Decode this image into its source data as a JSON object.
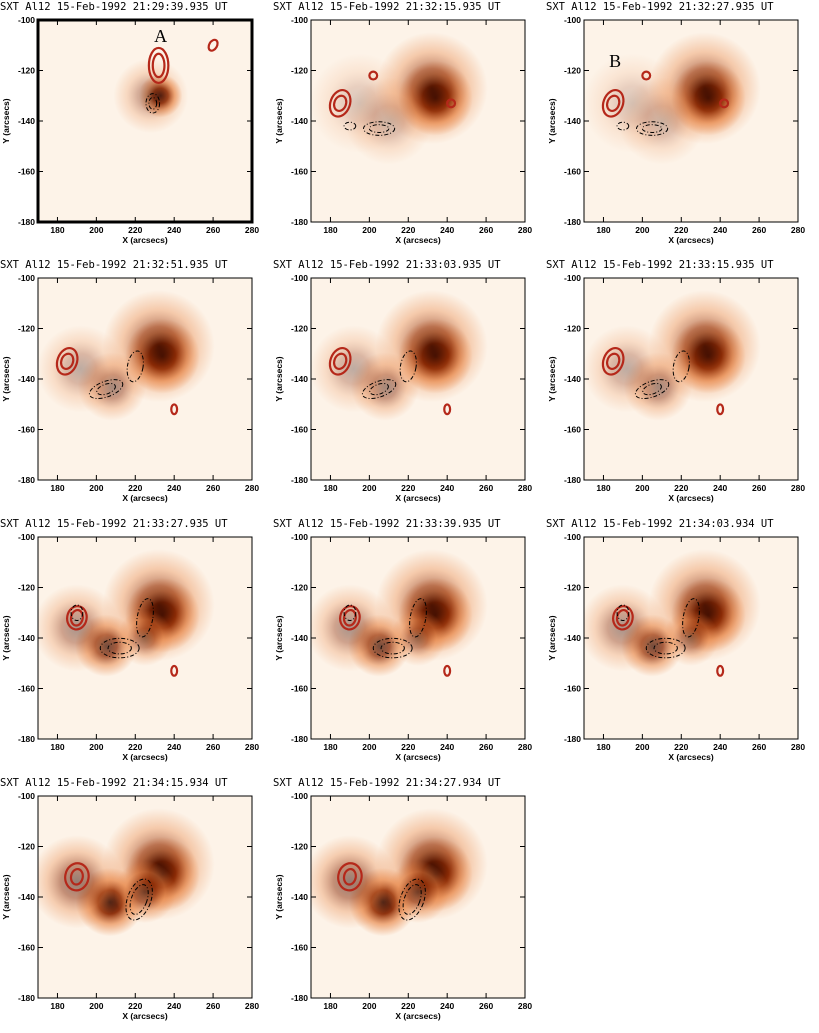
{
  "figure": {
    "colors": {
      "background": "#ffffff",
      "image_low": "#fdf3e8",
      "image_mid": "#e8884a",
      "image_high": "#2a0600",
      "contour_red": "#b5281a",
      "contour_black": "#000000"
    },
    "panels": [
      {
        "id": "p1",
        "title": "SXT Al12   15-Feb-1992 21:29:39.935 UT",
        "ylabel": "Y (arcsecs)",
        "xlabel": "X (arcsecs)",
        "letter": "A",
        "framed": true
      },
      {
        "id": "p2",
        "title": "SXT Al12   15-Feb-1992 21:32:15.935 UT",
        "ylabel": "Y (arcsecs)",
        "xlabel": "X (arcsecs)",
        "letter": ""
      },
      {
        "id": "p3",
        "title": "SXT Al12   15-Feb-1992 21:32:27.935 UT",
        "ylabel": "Y (arcsecs)",
        "xlabel": "X (arcsecs)",
        "letter": "B"
      },
      {
        "id": "p4",
        "title": "SXT Al12   15-Feb-1992 21:32:51.935 UT",
        "ylabel": "Y (arcsecs)",
        "xlabel": "X (arcsecs)",
        "letter": ""
      },
      {
        "id": "p5",
        "title": "SXT Al12   15-Feb-1992 21:33:03.935 UT",
        "ylabel": "Y (arcsecs)",
        "xlabel": "X (arcsecs)",
        "letter": ""
      },
      {
        "id": "p6",
        "title": "SXT Al12   15-Feb-1992 21:33:15.935 UT",
        "ylabel": "Y (arcsecs)",
        "xlabel": "X (arcsecs)",
        "letter": ""
      },
      {
        "id": "p7",
        "title": "SXT Al12   15-Feb-1992 21:33:27.935 UT",
        "ylabel": "Y (arcsecs)",
        "xlabel": "X (arcsecs)",
        "letter": ""
      },
      {
        "id": "p8",
        "title": "SXT Al12   15-Feb-1992 21:33:39.935 UT",
        "ylabel": "Y (arcsecs)",
        "xlabel": "X (arcsecs)",
        "letter": ""
      },
      {
        "id": "p9",
        "title": "SXT Al12   15-Feb-1992 21:34:03.934 UT",
        "ylabel": "Y (arcsecs)",
        "xlabel": "X (arcsecs)",
        "letter": ""
      },
      {
        "id": "p10",
        "title": "SXT Al12   15-Feb-1992 21:34:15.934 UT",
        "ylabel": "Y (arcsecs)",
        "xlabel": "X (arcsecs)",
        "letter": ""
      },
      {
        "id": "p11",
        "title": "SXT Al12   15-Feb-1992 21:34:27.934 UT",
        "ylabel": "Y (arcsecs)",
        "xlabel": "X (arcsecs)",
        "letter": ""
      }
    ],
    "x_ticks": [
      180,
      200,
      220,
      240,
      260,
      280
    ],
    "y_ticks": [
      -100,
      -120,
      -140,
      -160,
      -180
    ],
    "x_range": [
      170,
      280
    ],
    "y_range": [
      -180,
      -100
    ]
  }
}
